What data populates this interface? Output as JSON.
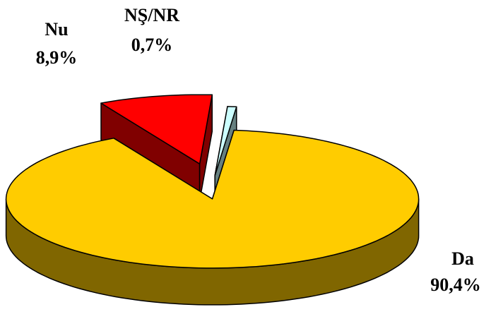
{
  "chart_data": {
    "type": "pie3d",
    "categories": [
      "Da",
      "Nu",
      "NŞ/NR"
    ],
    "values": [
      90.4,
      8.9,
      0.7
    ],
    "value_labels": [
      "90,4%",
      "8,9%",
      "0,7%"
    ],
    "colors": [
      "#FFCC00",
      "#FF0000",
      "#CCFFFF"
    ]
  }
}
